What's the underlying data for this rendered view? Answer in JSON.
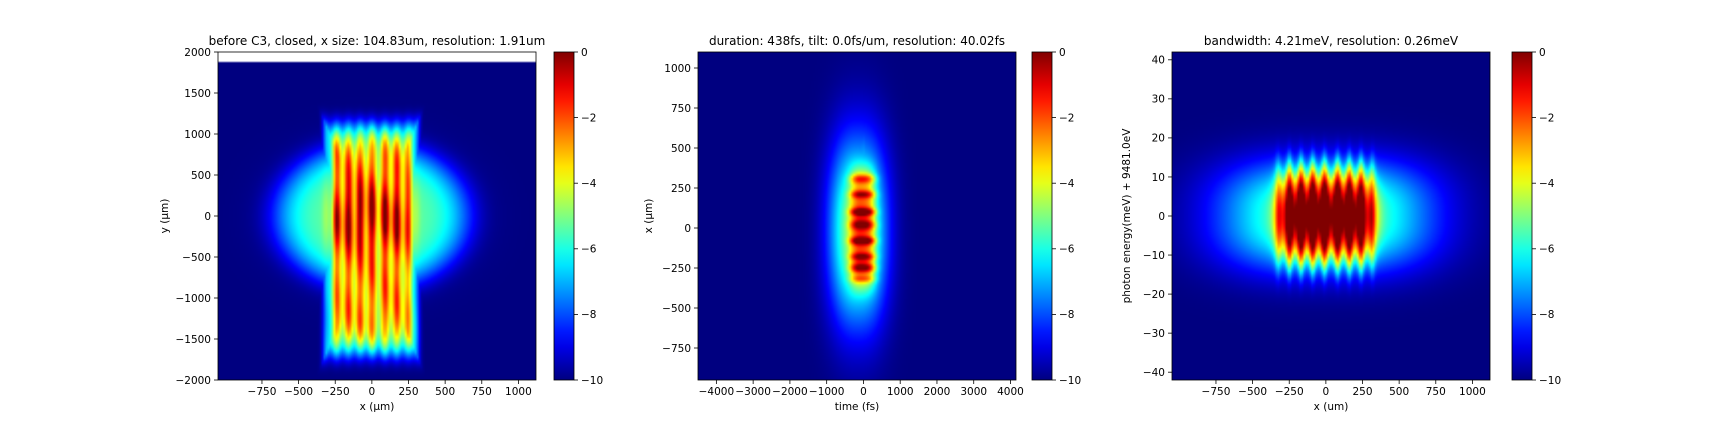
{
  "chart_data": [
    {
      "type": "heatmap",
      "title": "before C3, closed, x size: 104.83um, resolution: 1.91um",
      "xlabel": "x (μm)",
      "ylabel": "y (μm)",
      "xlim": [
        -1050,
        1120
      ],
      "ylim": [
        -2000,
        2000
      ],
      "xticks": [
        -750,
        -500,
        -250,
        0,
        250,
        500,
        750,
        1000
      ],
      "yticks": [
        -2000,
        -1500,
        -1000,
        -500,
        0,
        500,
        1000,
        1500,
        2000
      ],
      "colormap": "jet",
      "colorbar": {
        "range": [
          -10,
          0
        ],
        "ticks": [
          0,
          -2,
          -4,
          -6,
          -8,
          -10
        ]
      },
      "features": {
        "aperture_top_y": 1880,
        "core": {
          "x_range": [
            -340,
            330
          ],
          "y_range": [
            -1800,
            1220
          ]
        },
        "vertical_stripes_x": [
          -330,
          -240,
          -160,
          -80,
          0,
          90,
          170,
          250,
          320
        ],
        "halo_peak": -5.5
      }
    },
    {
      "type": "heatmap",
      "title": "duration: 438fs, tilt: 0.0fs/um, resolution: 40.02fs",
      "xlabel": "time (fs)",
      "ylabel": "x (μm)",
      "xlim": [
        -4500,
        4150
      ],
      "ylim": [
        -950,
        1100
      ],
      "xticks": [
        -4000,
        -3000,
        -2000,
        -1000,
        0,
        1000,
        2000,
        3000,
        4000
      ],
      "yticks": [
        -750,
        -500,
        -250,
        0,
        250,
        500,
        750,
        1000
      ],
      "colormap": "jet",
      "colorbar": {
        "range": [
          -10,
          0
        ],
        "ticks": [
          0,
          -2,
          -4,
          -6,
          -8,
          -10
        ]
      },
      "features": {
        "core": {
          "t_range": [
            -900,
            600
          ],
          "x_range": [
            -700,
            620
          ]
        },
        "horizontal_lobes_x": [
          310,
          210,
          100,
          20,
          -80,
          -180,
          -250,
          -320
        ]
      }
    },
    {
      "type": "heatmap",
      "title": "bandwidth: 4.21meV, resolution: 0.26meV",
      "xlabel": "x (um)",
      "ylabel": "photon energy(meV) + 9481.0eV",
      "xlim": [
        -1050,
        1120
      ],
      "ylim": [
        -42,
        42
      ],
      "xticks": [
        -750,
        -500,
        -250,
        0,
        250,
        500,
        750,
        1000
      ],
      "yticks": [
        -40,
        -30,
        -20,
        -10,
        0,
        10,
        20,
        30,
        40
      ],
      "colormap": "jet",
      "colorbar": {
        "range": [
          -10,
          0
        ],
        "ticks": [
          0,
          -2,
          -4,
          -6,
          -8,
          -10
        ]
      },
      "features": {
        "core": {
          "x_range": [
            -680,
            680
          ],
          "e_range": [
            -15,
            15
          ]
        },
        "vertical_stripes_x": [
          -330,
          -250,
          -170,
          -90,
          -10,
          80,
          160,
          240,
          320
        ]
      }
    }
  ]
}
